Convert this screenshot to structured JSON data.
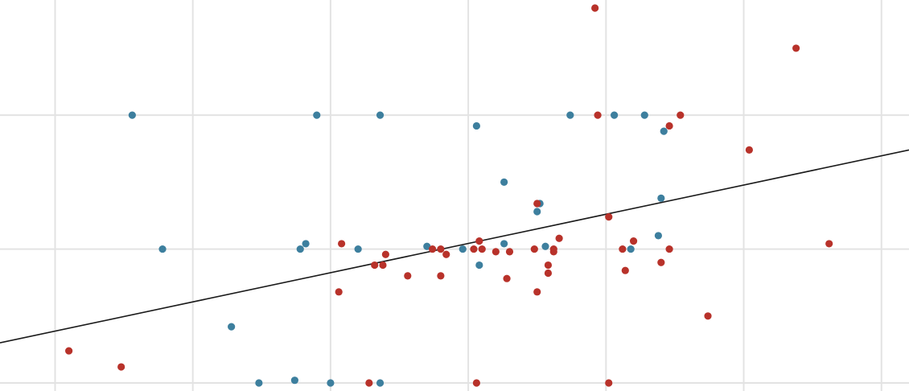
{
  "chart_data": {
    "type": "scatter",
    "title": "",
    "xlabel": "",
    "ylabel": "",
    "grid": true,
    "legend": "none",
    "xlim": [
      -0.2,
      3.1
    ],
    "ylim": [
      -0.03,
      1.43
    ],
    "gridlines_x": [
      0,
      0.5,
      1,
      1.5,
      2,
      2.5,
      3
    ],
    "gridlines_y": [
      0,
      0.5,
      1
    ],
    "trendline": {
      "color": "#1a1a1a",
      "points": [
        [
          -0.2,
          0.15
        ],
        [
          3.1,
          0.87
        ]
      ]
    },
    "series": [
      {
        "color": "#3d7f9e",
        "points": [
          [
            0.28,
            1.0
          ],
          [
            0.95,
            1.0
          ],
          [
            1.18,
            1.0
          ],
          [
            1.53,
            0.96
          ],
          [
            1.87,
            1.0
          ],
          [
            2.03,
            1.0
          ],
          [
            2.14,
            1.0
          ],
          [
            2.21,
            0.94
          ],
          [
            1.63,
            0.75
          ],
          [
            1.76,
            0.67
          ],
          [
            1.75,
            0.64
          ],
          [
            2.2,
            0.69
          ],
          [
            2.19,
            0.55
          ],
          [
            1.78,
            0.51
          ],
          [
            2.09,
            0.5
          ],
          [
            1.63,
            0.52
          ],
          [
            1.35,
            0.51
          ],
          [
            1.48,
            0.5
          ],
          [
            1.1,
            0.5
          ],
          [
            0.89,
            0.5
          ],
          [
            0.91,
            0.52
          ],
          [
            0.39,
            0.5
          ],
          [
            1.54,
            0.44
          ],
          [
            0.64,
            0.21
          ],
          [
            0.74,
            0.0
          ],
          [
            0.87,
            0.01
          ],
          [
            1.0,
            0.0
          ],
          [
            1.18,
            0.0
          ]
        ]
      },
      {
        "color": "#b8322a",
        "points": [
          [
            1.96,
            1.4
          ],
          [
            2.69,
            1.25
          ],
          [
            1.97,
            1.0
          ],
          [
            2.27,
            1.0
          ],
          [
            2.23,
            0.96
          ],
          [
            2.52,
            0.87
          ],
          [
            1.75,
            0.67
          ],
          [
            2.01,
            0.62
          ],
          [
            2.81,
            0.52
          ],
          [
            1.04,
            0.52
          ],
          [
            1.54,
            0.53
          ],
          [
            1.83,
            0.54
          ],
          [
            2.1,
            0.53
          ],
          [
            2.06,
            0.5
          ],
          [
            2.23,
            0.5
          ],
          [
            1.37,
            0.5
          ],
          [
            1.4,
            0.5
          ],
          [
            1.52,
            0.5
          ],
          [
            1.55,
            0.5
          ],
          [
            1.74,
            0.5
          ],
          [
            1.81,
            0.5
          ],
          [
            1.81,
            0.49
          ],
          [
            1.65,
            0.49
          ],
          [
            1.6,
            0.49
          ],
          [
            1.42,
            0.48
          ],
          [
            1.2,
            0.48
          ],
          [
            1.16,
            0.44
          ],
          [
            1.19,
            0.44
          ],
          [
            1.28,
            0.4
          ],
          [
            1.4,
            0.4
          ],
          [
            2.2,
            0.45
          ],
          [
            1.79,
            0.44
          ],
          [
            1.79,
            0.41
          ],
          [
            1.64,
            0.39
          ],
          [
            2.07,
            0.42
          ],
          [
            1.03,
            0.34
          ],
          [
            1.75,
            0.34
          ],
          [
            2.37,
            0.25
          ],
          [
            0.05,
            0.12
          ],
          [
            0.24,
            0.06
          ],
          [
            1.14,
            0.0
          ],
          [
            1.53,
            0.0
          ],
          [
            2.01,
            0.0
          ]
        ]
      }
    ]
  }
}
